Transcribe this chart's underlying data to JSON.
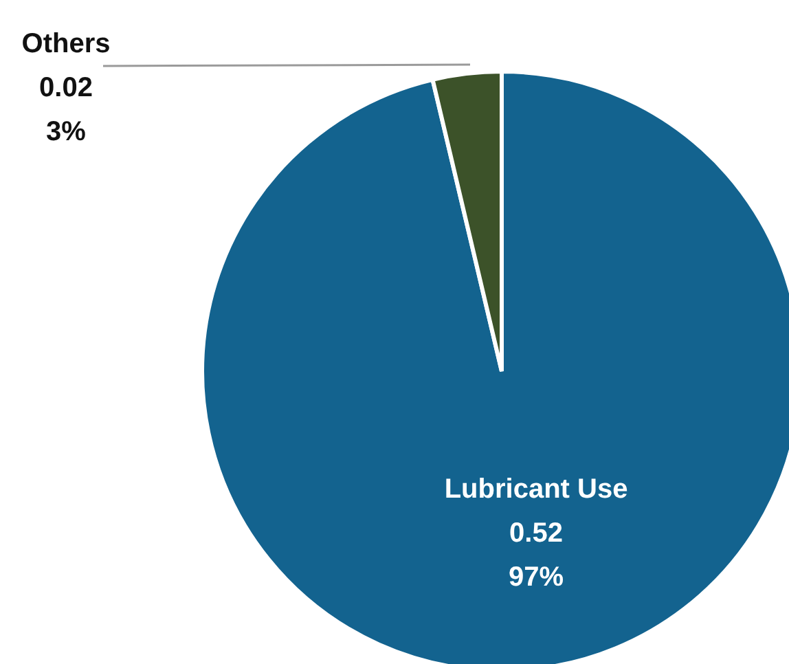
{
  "chart_data": {
    "type": "pie",
    "categories": [
      "Lubricant Use",
      "Others"
    ],
    "values": [
      0.52,
      0.02
    ],
    "colors": [
      "#13638f",
      "#3c5229"
    ],
    "value_labels": [
      "0.52\n97%",
      "0.02\n3%"
    ]
  }
}
